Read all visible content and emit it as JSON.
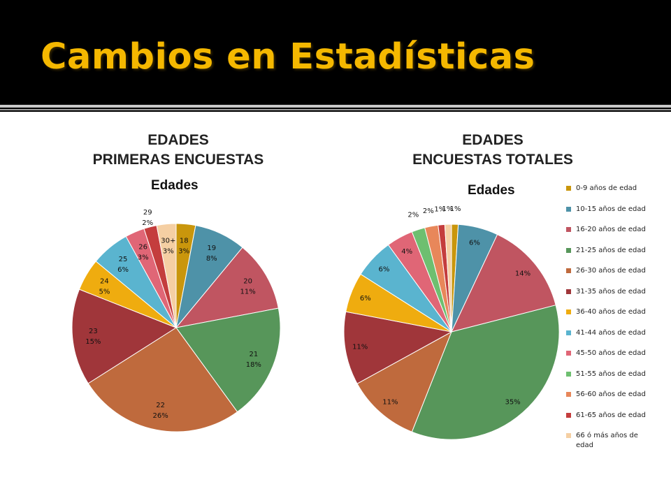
{
  "slide": {
    "title": "Cambios en Estadísticas",
    "heading_left": [
      "EDADES",
      "PRIMERAS ENCUESTAS"
    ],
    "heading_right": [
      "EDADES",
      "ENCUESTAS TOTALES"
    ]
  },
  "chart_data": [
    {
      "type": "pie",
      "title": "Edades",
      "slices": [
        {
          "label": "18",
          "pct": "3%",
          "value": 3,
          "color": "#c9960c"
        },
        {
          "label": "19",
          "pct": "8%",
          "value": 8,
          "color": "#4e92a8"
        },
        {
          "label": "20",
          "pct": "11%",
          "value": 11,
          "color": "#c05561"
        },
        {
          "label": "21",
          "pct": "18%",
          "value": 18,
          "color": "#57965a"
        },
        {
          "label": "22",
          "pct": "26%",
          "value": 26,
          "color": "#bf6a3d"
        },
        {
          "label": "23",
          "pct": "15%",
          "value": 15,
          "color": "#a0363a"
        },
        {
          "label": "24",
          "pct": "5%",
          "value": 5,
          "color": "#efac0f"
        },
        {
          "label": "25",
          "pct": "6%",
          "value": 6,
          "color": "#5ab4cf"
        },
        {
          "label": "26",
          "pct": "3%",
          "value": 3,
          "color": "#e06676"
        },
        {
          "label": "29",
          "pct": "2%",
          "value": 2,
          "color": "#c43d3d"
        },
        {
          "label": "30+",
          "pct": "3%",
          "value": 3,
          "color": "#f5cfa3"
        }
      ]
    },
    {
      "type": "pie",
      "title": "Edades",
      "slices": [
        {
          "label": "0-9 años de edad",
          "pct": "1%",
          "value": 1,
          "color": "#c9960c"
        },
        {
          "label": "10-15 años de edad",
          "pct": "6%",
          "value": 6,
          "color": "#4e92a8"
        },
        {
          "label": "16-20 años de edad",
          "pct": "14%",
          "value": 14,
          "color": "#c05561"
        },
        {
          "label": "21-25 años de edad",
          "pct": "35%",
          "value": 35,
          "color": "#57965a"
        },
        {
          "label": "26-30 años de edad",
          "pct": "11%",
          "value": 11,
          "color": "#bf6a3d"
        },
        {
          "label": "31-35 años de edad",
          "pct": "11%",
          "value": 11,
          "color": "#a0363a"
        },
        {
          "label": "36-40 años de edad",
          "pct": "6%",
          "value": 6,
          "color": "#efac0f"
        },
        {
          "label": "41-44 años de edad",
          "pct": "6%",
          "value": 6,
          "color": "#5ab4cf"
        },
        {
          "label": "45-50 años de edad",
          "pct": "4%",
          "value": 4,
          "color": "#e06676"
        },
        {
          "label": "51-55 años de edad",
          "pct": "2%",
          "value": 2,
          "color": "#6ebf70"
        },
        {
          "label": "56-60 años de edad",
          "pct": "2%",
          "value": 2,
          "color": "#e8875a"
        },
        {
          "label": "61-65 años de edad",
          "pct": "1%",
          "value": 1,
          "color": "#c43d3d"
        },
        {
          "label": "66 ó más años de edad",
          "pct": "1%",
          "value": 1,
          "color": "#f5cfa3"
        }
      ],
      "legend_position": "right"
    }
  ]
}
